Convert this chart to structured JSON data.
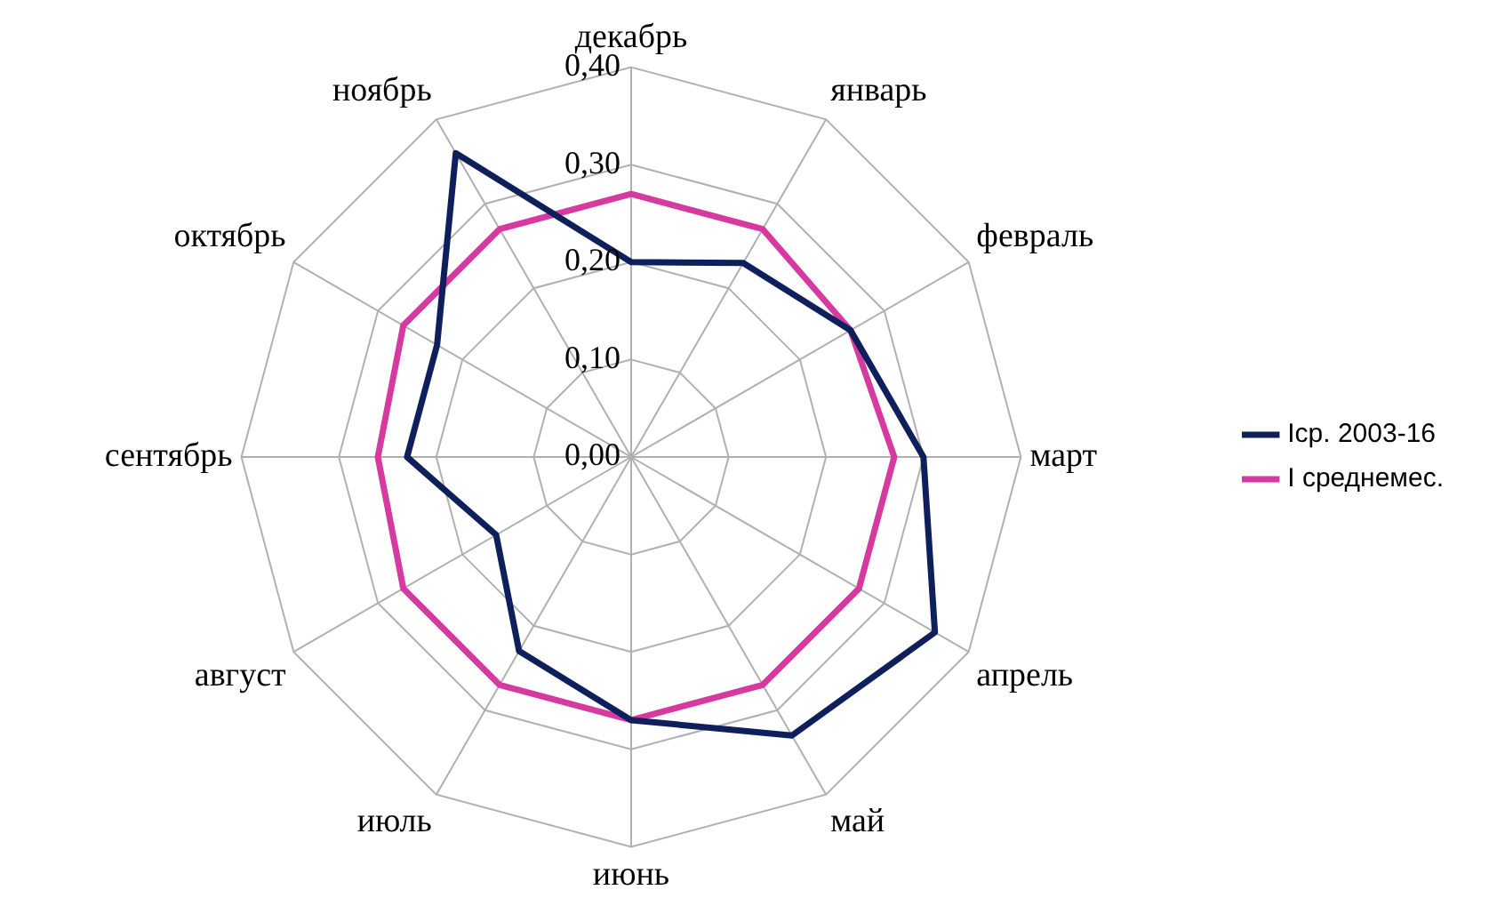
{
  "chart_data": {
    "type": "radar",
    "categories": [
      "декабрь",
      "январь",
      "февраль",
      "март",
      "апрель",
      "май",
      "июнь",
      "июль",
      "август",
      "сентябрь",
      "октябрь",
      "ноябрь"
    ],
    "series": [
      {
        "name": "Iср. 2003-16",
        "color": "#0f1f5c",
        "values": [
          0.2,
          0.23,
          0.26,
          0.3,
          0.36,
          0.33,
          0.27,
          0.23,
          0.16,
          0.23,
          0.23,
          0.36
        ]
      },
      {
        "name": "I среднемес.",
        "color": "#d63aa0",
        "values": [
          0.27,
          0.27,
          0.26,
          0.27,
          0.27,
          0.27,
          0.27,
          0.27,
          0.27,
          0.26,
          0.27,
          0.27
        ]
      }
    ],
    "ylim": [
      0,
      0.4
    ],
    "yticks": [
      {
        "value": 0,
        "label": "0,00"
      },
      {
        "value": 0.1,
        "label": "0,10"
      },
      {
        "value": 0.2,
        "label": "0,20"
      },
      {
        "value": 0.3,
        "label": "0,30"
      },
      {
        "value": 0.4,
        "label": "0,40"
      }
    ],
    "grid": true,
    "legend": "right",
    "marker": "none",
    "line_style": "solid"
  }
}
